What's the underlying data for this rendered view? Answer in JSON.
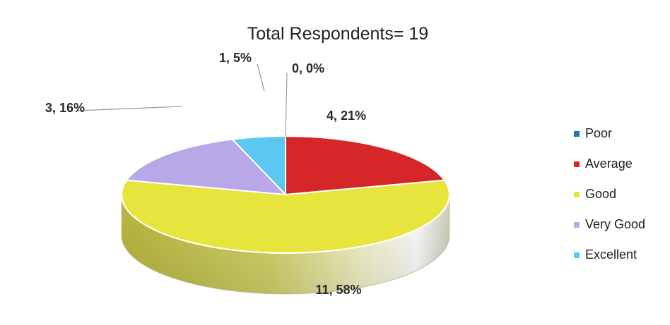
{
  "chart_data": {
    "type": "pie",
    "title": "Total Respondents= 19",
    "series": [
      {
        "name": "Poor",
        "value": 0,
        "label": "0, 0%",
        "color": "#1f77b4"
      },
      {
        "name": "Average",
        "value": 4,
        "label": "4, 21%",
        "color": "#d62728"
      },
      {
        "name": "Good",
        "value": 11,
        "label": "11, 58%",
        "color": "#e7e53d"
      },
      {
        "name": "Very Good",
        "value": 3,
        "label": "3, 16%",
        "color": "#b8a8e8"
      },
      {
        "name": "Excellent",
        "value": 1,
        "label": "1, 5%",
        "color": "#5ac8f0"
      }
    ],
    "legend_position": "right"
  }
}
